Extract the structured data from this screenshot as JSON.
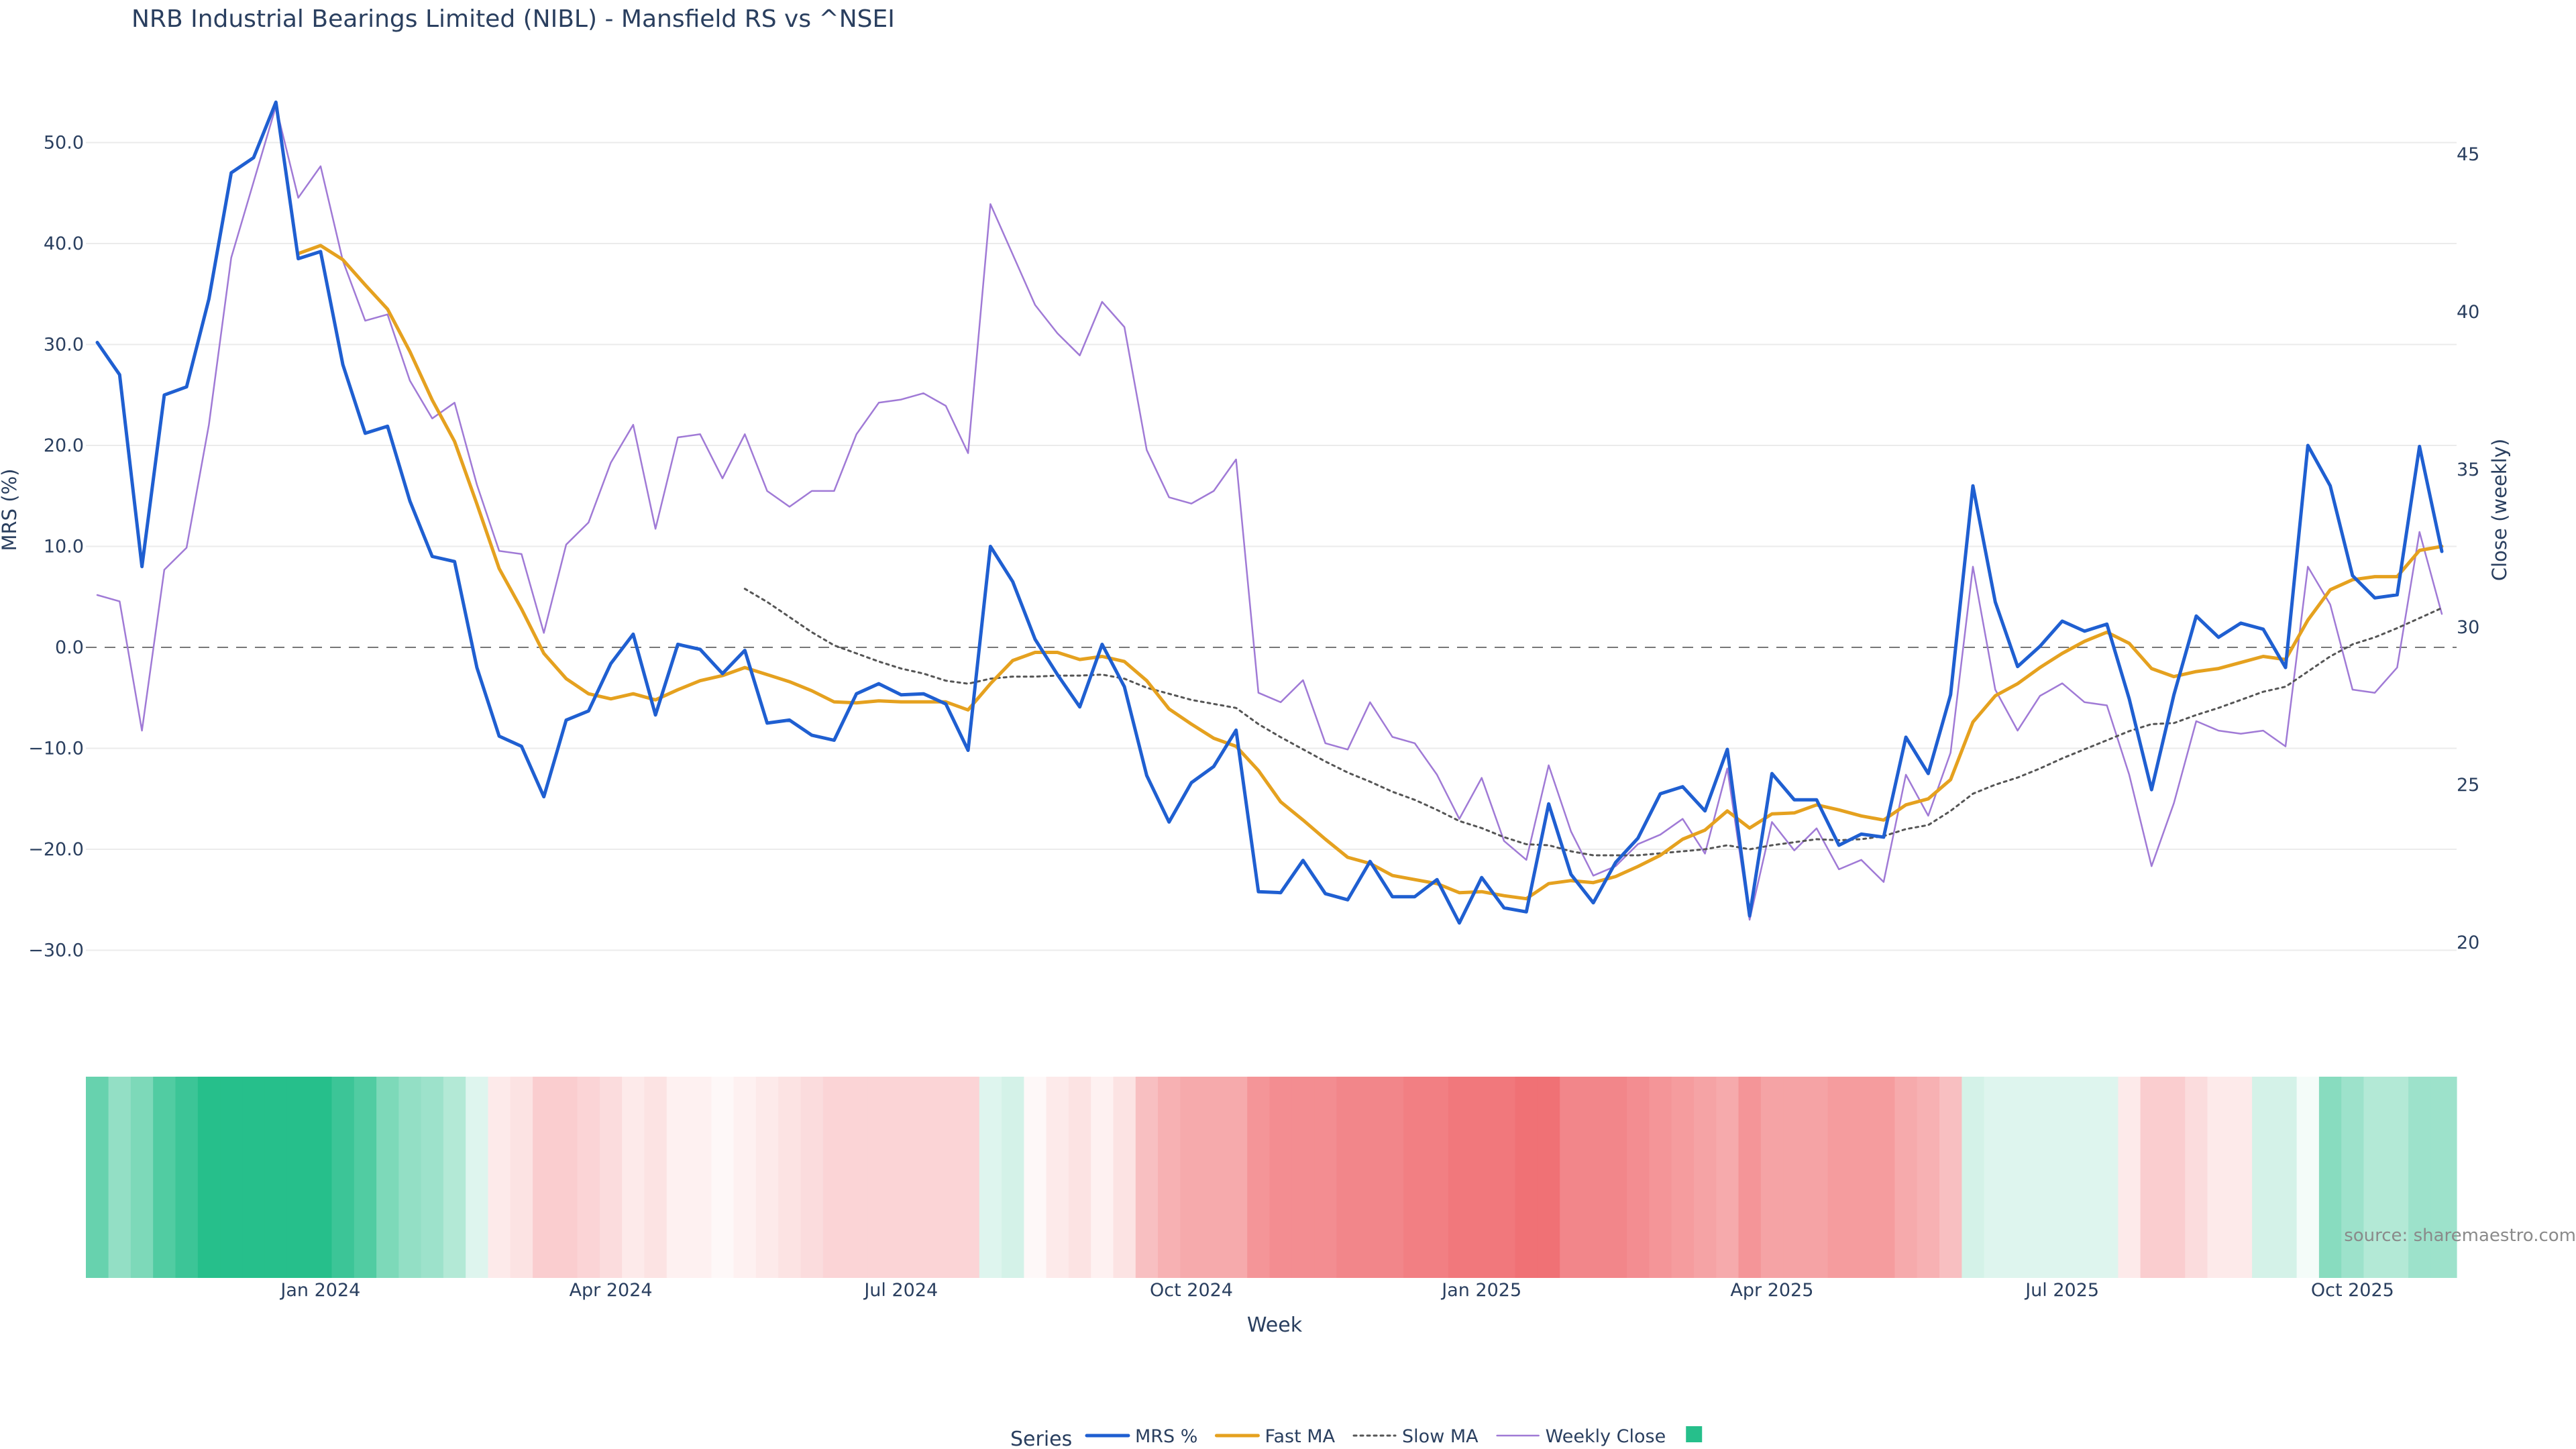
{
  "chart_data": {
    "type": "line",
    "title": "NRB Industrial Bearings Limited (NIBL) - Mansfield RS vs ^NSEI",
    "xlabel": "Week",
    "ylabel_left": "MRS (%)",
    "ylabel_right": "Close (weekly)",
    "ylim_left": [
      -38,
      56
    ],
    "ylim_right": [
      18,
      47
    ],
    "yticks_left": [
      "50.0",
      "40.0",
      "30.0",
      "20.0",
      "10.0",
      "0.0",
      "−10.0",
      "−20.0",
      "−30.0"
    ],
    "yticks_left_values": [
      50,
      40,
      30,
      20,
      10,
      0,
      -10,
      -20,
      -30
    ],
    "yticks_right": [
      "45",
      "40",
      "35",
      "30",
      "25",
      "20"
    ],
    "yticks_right_values": [
      45,
      40,
      35,
      30,
      25,
      20
    ],
    "xticks": [
      {
        "label": "Jan 2024",
        "week": 10
      },
      {
        "label": "Apr 2024",
        "week": 23
      },
      {
        "label": "Jul 2024",
        "week": 36
      },
      {
        "label": "Oct 2024",
        "week": 49
      },
      {
        "label": "Jan 2025",
        "week": 62
      },
      {
        "label": "Apr 2025",
        "week": 75
      },
      {
        "label": "Jul 2025",
        "week": 88
      },
      {
        "label": "Oct 2025",
        "week": 101
      }
    ],
    "weeks": 106,
    "zero_line": 0,
    "legend_title": "Series",
    "legend_position": "bottom-center",
    "source": "source: sharemaestro.com",
    "series": [
      {
        "name": "MRS %",
        "color": "#1f5fd1",
        "style": "solid",
        "axis": "left",
        "values": [
          30.2,
          27.0,
          8.0,
          25.0,
          25.8,
          34.5,
          47.0,
          48.5,
          54.0,
          38.5,
          39.2,
          28.0,
          21.2,
          21.9,
          14.5,
          9.0,
          8.5,
          -2.0,
          -8.8,
          -9.8,
          -14.8,
          -7.2,
          -6.3,
          -1.6,
          1.3,
          -6.7,
          0.3,
          -0.2,
          -2.6,
          -0.3,
          -7.5,
          -7.2,
          -8.7,
          -9.2,
          -4.6,
          -3.6,
          -4.7,
          -4.6,
          -5.6,
          -10.2,
          10.0,
          6.5,
          0.8,
          -2.7,
          -5.9,
          0.3,
          -3.9,
          -12.7,
          -17.3,
          -13.4,
          -11.8,
          -8.2,
          -24.2,
          -24.3,
          -21.1,
          -24.4,
          -25.0,
          -21.2,
          -24.7,
          -24.7,
          -23.0,
          -27.3,
          -22.8,
          -25.8,
          -26.2,
          -15.5,
          -22.5,
          -25.3,
          -21.3,
          -18.9,
          -14.5,
          -13.8,
          -16.2,
          -10.1,
          -26.6,
          -12.5,
          -15.1,
          -15.1,
          -19.6,
          -18.5,
          -18.8,
          -8.9,
          -12.5,
          -4.7,
          16.0,
          4.5,
          -1.9,
          0.1,
          2.6,
          1.6,
          2.3,
          -5.1,
          -14.1,
          -4.7,
          3.1,
          1.0,
          2.4,
          1.8,
          -2.0,
          20.0,
          16.0,
          7.1,
          4.9,
          5.2,
          19.9,
          9.5
        ]
      },
      {
        "name": "Fast MA",
        "color": "#e5a11f",
        "style": "solid",
        "axis": "left",
        "values": [
          null,
          null,
          null,
          null,
          null,
          null,
          null,
          null,
          null,
          39.0,
          39.8,
          38.4,
          35.9,
          33.5,
          29.3,
          24.5,
          20.4,
          14.2,
          7.8,
          3.8,
          -0.6,
          -3.1,
          -4.6,
          -5.1,
          -4.6,
          -5.2,
          -4.2,
          -3.3,
          -2.8,
          -2.0,
          -2.7,
          -3.4,
          -4.3,
          -5.4,
          -5.5,
          -5.3,
          -5.4,
          -5.4,
          -5.4,
          -6.2,
          -3.6,
          -1.3,
          -0.5,
          -0.5,
          -1.2,
          -0.9,
          -1.4,
          -3.3,
          -6.1,
          -7.6,
          -9.0,
          -9.8,
          -12.2,
          -15.3,
          -17.1,
          -19.0,
          -20.8,
          -21.4,
          -22.6,
          -23.0,
          -23.4,
          -24.3,
          -24.2,
          -24.6,
          -24.9,
          -23.4,
          -23.1,
          -23.3,
          -22.7,
          -21.7,
          -20.6,
          -19.0,
          -18.1,
          -16.2,
          -17.9,
          -16.5,
          -16.4,
          -15.6,
          -16.1,
          -16.7,
          -17.1,
          -15.6,
          -15.0,
          -13.1,
          -7.4,
          -4.8,
          -3.6,
          -2.0,
          -0.6,
          0.6,
          1.5,
          0.4,
          -2.1,
          -2.9,
          -2.4,
          -2.1,
          -1.5,
          -0.9,
          -1.2,
          2.7,
          5.7,
          6.7,
          7.0,
          7.0,
          9.6,
          10.0
        ]
      },
      {
        "name": "Slow MA",
        "color": "#555555",
        "style": "dotted",
        "axis": "left",
        "values": [
          null,
          null,
          null,
          null,
          null,
          null,
          null,
          null,
          null,
          null,
          null,
          null,
          null,
          null,
          null,
          null,
          null,
          null,
          null,
          null,
          null,
          null,
          null,
          null,
          null,
          null,
          null,
          null,
          null,
          5.8,
          4.5,
          3.0,
          1.5,
          0.2,
          -0.6,
          -1.4,
          -2.1,
          -2.6,
          -3.3,
          -3.6,
          -3.1,
          -2.9,
          -2.9,
          -2.8,
          -2.8,
          -2.7,
          -3.1,
          -4.0,
          -4.6,
          -5.2,
          -5.6,
          -6.0,
          -7.6,
          -8.9,
          -10.1,
          -11.3,
          -12.4,
          -13.3,
          -14.3,
          -15.1,
          -16.1,
          -17.2,
          -17.9,
          -18.8,
          -19.5,
          -19.6,
          -20.2,
          -20.6,
          -20.6,
          -20.6,
          -20.4,
          -20.2,
          -20.0,
          -19.6,
          -20.0,
          -19.6,
          -19.3,
          -19.0,
          -19.1,
          -19.0,
          -18.7,
          -18.0,
          -17.6,
          -16.2,
          -14.5,
          -13.6,
          -12.9,
          -12.0,
          -11.0,
          -10.1,
          -9.2,
          -8.3,
          -7.6,
          -7.5,
          -6.7,
          -6.0,
          -5.2,
          -4.4,
          -3.9,
          -2.4,
          -0.9,
          0.3,
          1.0,
          1.9,
          2.9,
          3.9
        ]
      },
      {
        "name": "Weekly Close",
        "color": "#a07ad6",
        "style": "thin",
        "axis": "right",
        "values": [
          31.0,
          30.8,
          26.7,
          31.8,
          32.5,
          36.4,
          41.7,
          44.1,
          46.5,
          43.6,
          44.6,
          41.6,
          39.7,
          39.9,
          37.8,
          36.6,
          37.1,
          34.5,
          32.4,
          32.3,
          29.8,
          32.6,
          33.3,
          35.2,
          36.4,
          33.1,
          36.0,
          36.1,
          34.7,
          36.1,
          34.3,
          33.8,
          34.3,
          34.3,
          36.1,
          37.1,
          37.2,
          37.4,
          37.0,
          35.5,
          43.4,
          41.8,
          40.2,
          39.3,
          38.6,
          40.3,
          39.5,
          35.6,
          34.1,
          33.9,
          34.3,
          35.3,
          27.9,
          27.6,
          28.3,
          26.3,
          26.1,
          27.6,
          26.5,
          26.3,
          25.3,
          23.9,
          25.2,
          23.2,
          22.6,
          25.6,
          23.5,
          22.1,
          22.4,
          23.1,
          23.4,
          23.9,
          22.8,
          25.5,
          20.7,
          23.8,
          22.9,
          23.6,
          22.3,
          22.6,
          21.9,
          25.3,
          24.0,
          26.0,
          31.9,
          28.0,
          26.7,
          27.8,
          28.2,
          27.6,
          27.5,
          25.3,
          22.4,
          24.4,
          27.0,
          26.7,
          26.6,
          26.7,
          26.2,
          31.9,
          30.7,
          28.0,
          27.9,
          28.7,
          33.0,
          30.4
        ]
      }
    ],
    "heat_strip": {
      "green": "#26bf8b",
      "red": "#f07175",
      "values": [
        0.7,
        0.5,
        0.6,
        0.8,
        0.9,
        1.0,
        1.0,
        1.0,
        1.0,
        1.0,
        1.0,
        0.9,
        0.8,
        0.6,
        0.5,
        0.45,
        0.35,
        0.15,
        -0.15,
        -0.2,
        -0.35,
        -0.35,
        -0.3,
        -0.25,
        -0.15,
        -0.2,
        -0.1,
        -0.1,
        -0.05,
        -0.1,
        -0.15,
        -0.2,
        -0.25,
        -0.3,
        -0.3,
        -0.3,
        -0.3,
        -0.3,
        -0.3,
        -0.3,
        0.15,
        0.2,
        -0.05,
        -0.15,
        -0.2,
        -0.1,
        -0.2,
        -0.45,
        -0.55,
        -0.6,
        -0.6,
        -0.6,
        -0.75,
        -0.8,
        -0.8,
        -0.8,
        -0.85,
        -0.85,
        -0.85,
        -0.9,
        -0.9,
        -0.95,
        -0.95,
        -0.95,
        -1.0,
        -1.0,
        -0.85,
        -0.85,
        -0.85,
        -0.8,
        -0.75,
        -0.7,
        -0.65,
        -0.6,
        -0.75,
        -0.65,
        -0.65,
        -0.65,
        -0.7,
        -0.7,
        -0.7,
        -0.6,
        -0.55,
        -0.45,
        0.2,
        0.15,
        0.15,
        0.15,
        0.15,
        0.15,
        0.15,
        -0.15,
        -0.35,
        -0.35,
        -0.25,
        -0.15,
        -0.15,
        0.2,
        0.2,
        0.05,
        0.55,
        0.45,
        0.35,
        0.35,
        0.45,
        0.45
      ]
    }
  }
}
